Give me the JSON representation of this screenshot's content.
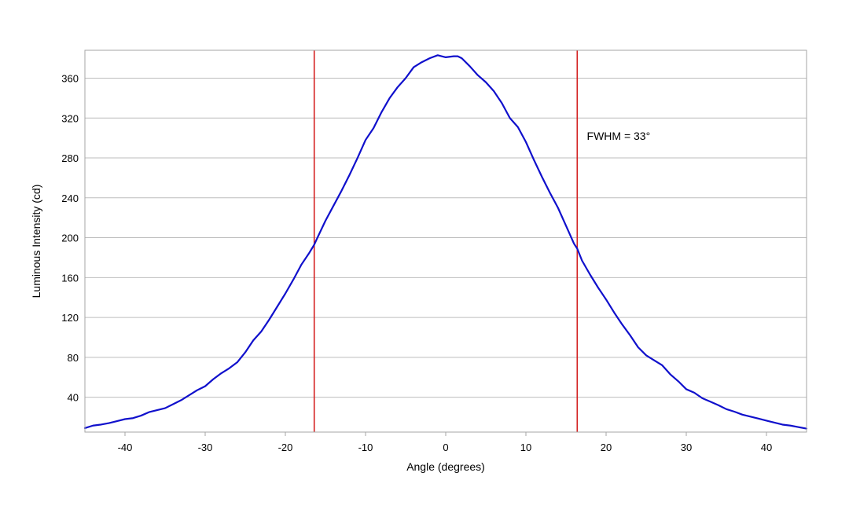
{
  "chart_data": {
    "type": "line",
    "title": "",
    "xlabel": "Angle (degrees)",
    "ylabel": "Luminous Intensity (cd)",
    "xlim": [
      -45,
      45
    ],
    "ylim": [
      5,
      388
    ],
    "x_ticks": [
      -40,
      -30,
      -20,
      -10,
      0,
      10,
      20,
      30,
      40
    ],
    "y_ticks": [
      40,
      80,
      120,
      160,
      200,
      240,
      280,
      320,
      360
    ],
    "grid": "horizontal",
    "colors": {
      "series": "#1010cc",
      "markers": "#d42020",
      "grid": "#bdbdbd",
      "frame": "#a6a6a6"
    },
    "series": [
      {
        "values": [
          [
            -45,
            9
          ],
          [
            -44,
            11.5
          ],
          [
            -43,
            12.5
          ],
          [
            -42,
            14
          ],
          [
            -41,
            16
          ],
          [
            -40,
            18
          ],
          [
            -39,
            19
          ],
          [
            -38,
            21.5
          ],
          [
            -37,
            25
          ],
          [
            -36,
            27
          ],
          [
            -35,
            29
          ],
          [
            -34,
            33
          ],
          [
            -33,
            37
          ],
          [
            -32,
            42
          ],
          [
            -31,
            47
          ],
          [
            -30,
            51
          ],
          [
            -29,
            58
          ],
          [
            -28,
            64
          ],
          [
            -27,
            69
          ],
          [
            -26,
            75
          ],
          [
            -25,
            85
          ],
          [
            -24,
            97
          ],
          [
            -23,
            106
          ],
          [
            -22,
            118
          ],
          [
            -21,
            131
          ],
          [
            -20,
            144
          ],
          [
            -19,
            158
          ],
          [
            -18,
            173
          ],
          [
            -17,
            185
          ],
          [
            -16.4,
            193
          ],
          [
            -16,
            200
          ],
          [
            -15,
            217
          ],
          [
            -14,
            232
          ],
          [
            -13,
            247
          ],
          [
            -12,
            263
          ],
          [
            -11,
            280
          ],
          [
            -10,
            298
          ],
          [
            -9,
            310
          ],
          [
            -8,
            326
          ],
          [
            -7,
            340
          ],
          [
            -6,
            351
          ],
          [
            -5,
            360
          ],
          [
            -4,
            371
          ],
          [
            -3,
            376
          ],
          [
            -2,
            380
          ],
          [
            -1,
            383
          ],
          [
            0,
            381
          ],
          [
            1,
            382
          ],
          [
            1.5,
            382
          ],
          [
            2,
            380
          ],
          [
            3,
            372
          ],
          [
            4,
            363
          ],
          [
            5,
            356
          ],
          [
            6,
            347
          ],
          [
            7,
            335
          ],
          [
            8,
            320
          ],
          [
            9,
            311
          ],
          [
            10,
            296
          ],
          [
            11,
            278
          ],
          [
            12,
            261
          ],
          [
            13,
            245
          ],
          [
            14,
            230
          ],
          [
            15,
            212
          ],
          [
            16,
            194
          ],
          [
            16.4,
            189
          ],
          [
            17,
            177
          ],
          [
            18,
            163
          ],
          [
            19,
            150
          ],
          [
            20,
            138
          ],
          [
            21,
            125
          ],
          [
            22,
            113
          ],
          [
            23,
            102
          ],
          [
            24,
            90
          ],
          [
            25,
            82
          ],
          [
            26,
            77
          ],
          [
            27,
            72
          ],
          [
            28,
            63
          ],
          [
            29,
            56
          ],
          [
            30,
            48
          ],
          [
            31,
            44.5
          ],
          [
            32,
            39
          ],
          [
            33,
            35.5
          ],
          [
            34,
            32
          ],
          [
            35,
            28
          ],
          [
            36,
            25.5
          ],
          [
            37,
            22.5
          ],
          [
            38,
            20.5
          ],
          [
            39,
            18.5
          ],
          [
            40,
            16.5
          ],
          [
            41,
            14.5
          ],
          [
            42,
            12.5
          ],
          [
            43,
            11.5
          ],
          [
            44,
            10
          ],
          [
            45,
            8.5
          ]
        ]
      }
    ],
    "vertical_markers": [
      -16.4,
      16.4
    ],
    "annotations": [
      {
        "text": "FWHM = 33°",
        "x": 17.6,
        "y": 298
      }
    ]
  }
}
